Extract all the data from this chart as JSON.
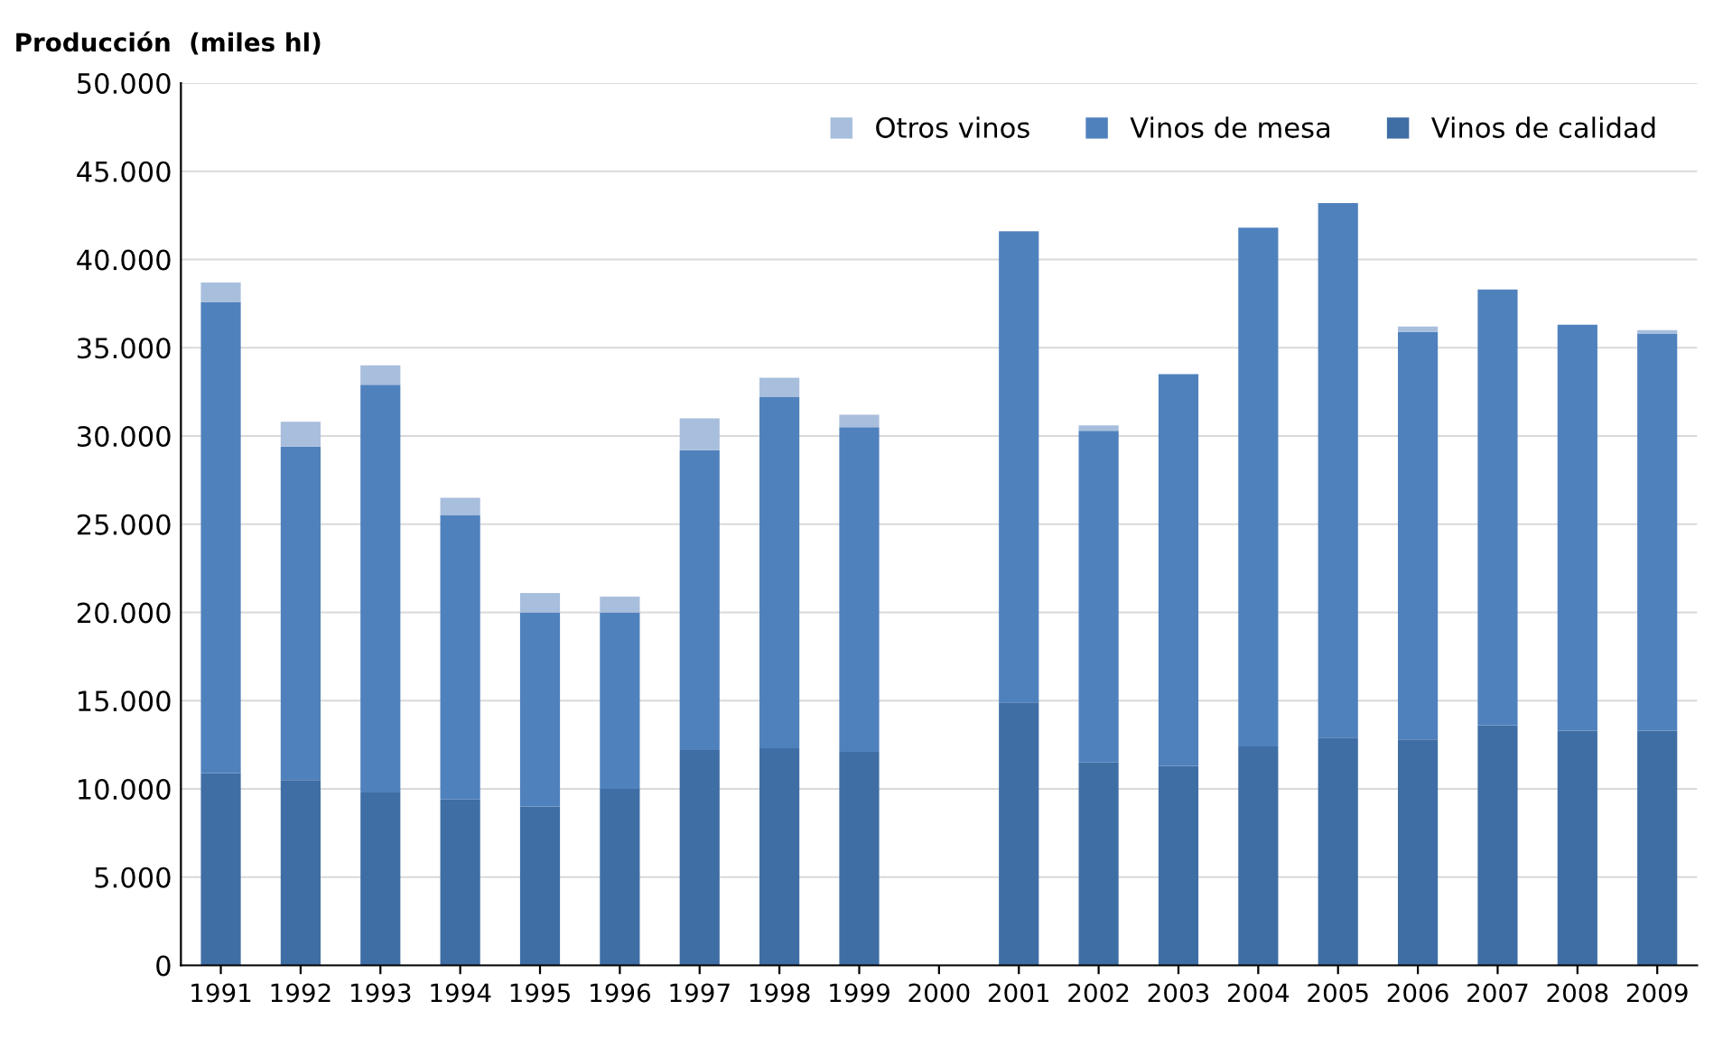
{
  "chart_data": {
    "type": "bar",
    "stacked": true,
    "ylabel": "Producción  (miles hl)",
    "categories": [
      "1991",
      "1992",
      "1993",
      "1994",
      "1995",
      "1996",
      "1997",
      "1998",
      "1999",
      "2000",
      "2001",
      "2002",
      "2003",
      "2004",
      "2005",
      "2006",
      "2007",
      "2008",
      "2009"
    ],
    "series": [
      {
        "name": "Vinos de calidad",
        "color": "#3f6ea5",
        "values": [
          10900,
          10500,
          9800,
          9400,
          9000,
          10000,
          12200,
          12300,
          12100,
          null,
          14900,
          11500,
          11300,
          12400,
          12900,
          12800,
          13600,
          13300,
          13300
        ]
      },
      {
        "name": "Vinos de mesa",
        "color": "#4f81bd",
        "values": [
          26700,
          18900,
          23100,
          16100,
          11000,
          10000,
          17000,
          19900,
          18400,
          null,
          26700,
          18800,
          22200,
          29400,
          30300,
          23100,
          24700,
          23000,
          22500
        ]
      },
      {
        "name": "Otros vinos",
        "color": "#a8bedd",
        "values": [
          1100,
          1400,
          1100,
          1000,
          1100,
          900,
          1800,
          1100,
          700,
          null,
          null,
          300,
          null,
          null,
          null,
          300,
          null,
          null,
          200
        ]
      }
    ],
    "ylim": [
      0,
      50000
    ],
    "yticks": [
      0,
      {
        "value": 5000,
        "label": "5.000"
      },
      {
        "value": 10000,
        "label": "10.000"
      },
      {
        "value": 15000,
        "label": "15.000"
      },
      {
        "value": 20000,
        "label": "20.000"
      },
      {
        "value": 25000,
        "label": "25.000"
      },
      {
        "value": 30000,
        "label": "30.000"
      },
      {
        "value": 35000,
        "label": "35.000"
      },
      {
        "value": 40000,
        "label": "40.000"
      },
      {
        "value": 45000,
        "label": "45.000"
      },
      {
        "value": 50000,
        "label": "50.000"
      }
    ],
    "grid": "y",
    "legend": "top right"
  }
}
